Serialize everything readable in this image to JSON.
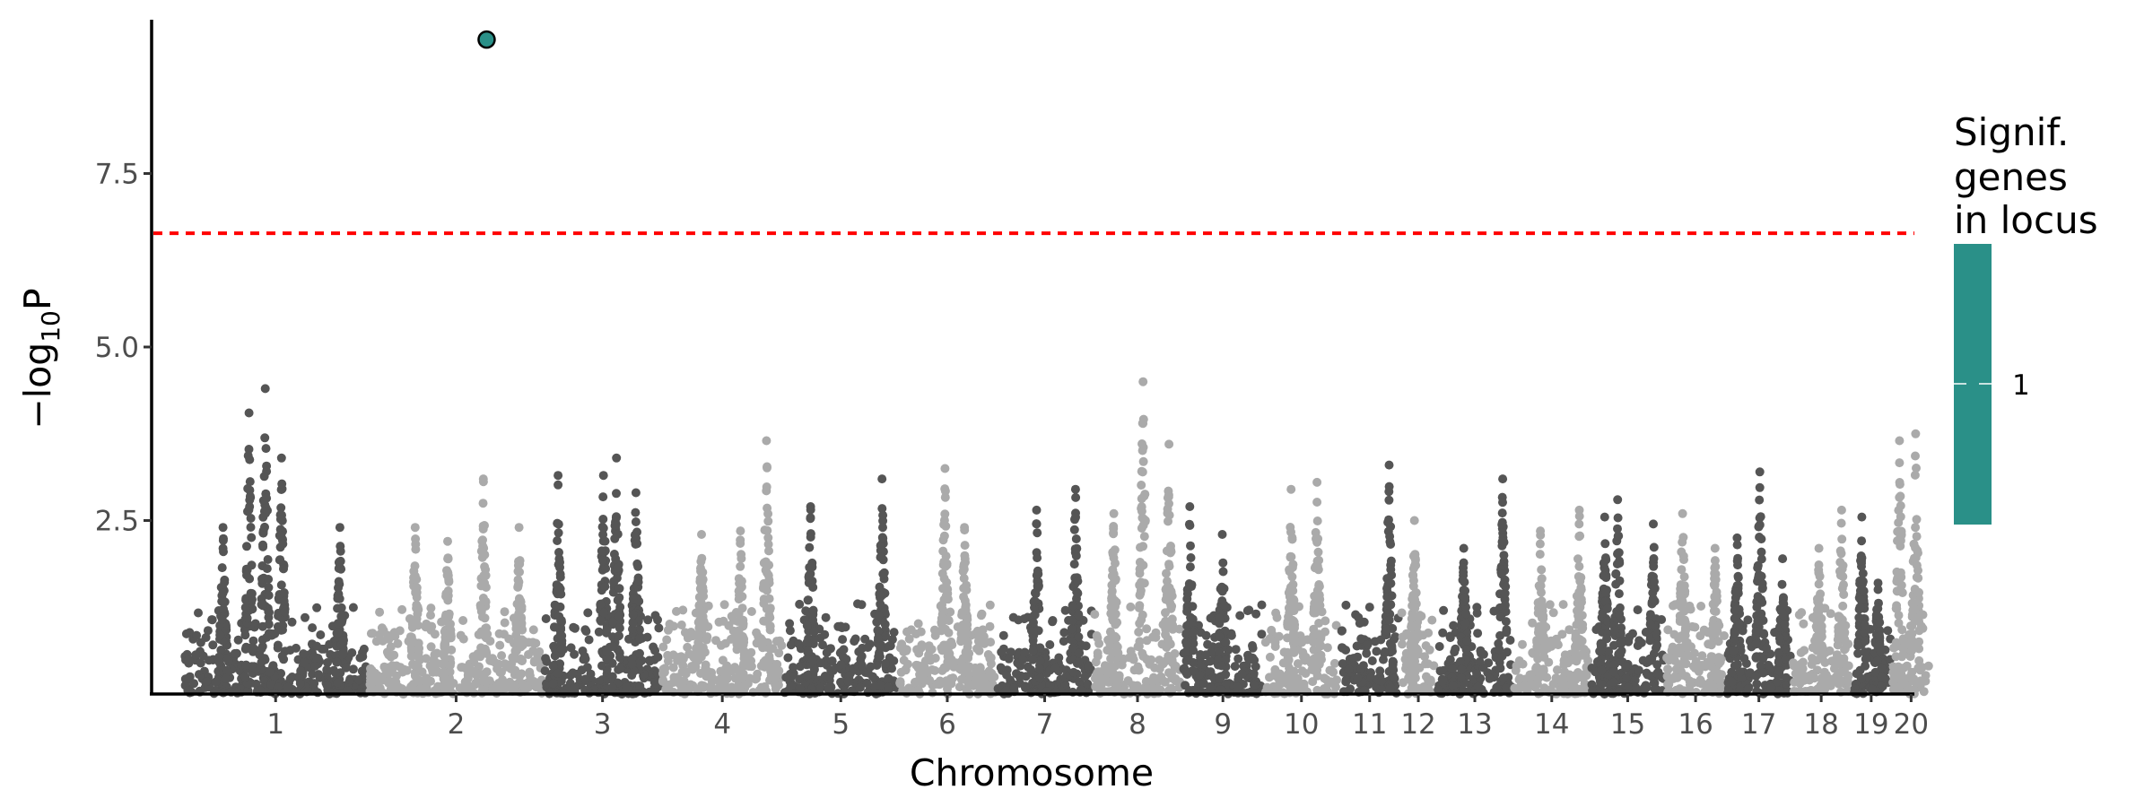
{
  "chart_data": {
    "type": "scatter",
    "subtype": "manhattan",
    "xlabel": "Chromosome",
    "ylabel_prefix": "−log",
    "ylabel_sub": "10",
    "ylabel_suffix": "P",
    "xlim_mb": [
      -50,
      2665
    ],
    "ylim": [
      0,
      9.7
    ],
    "yticks": [
      2.5,
      5.0,
      7.5
    ],
    "ytick_labels": [
      "2.5",
      "5.0",
      "7.5"
    ],
    "threshold": 6.64,
    "threshold_color": "#FF0000",
    "colors": {
      "dark": "#555555",
      "light": "#AAAAAA",
      "significant": "#2A9088"
    },
    "chromosomes": [
      {
        "label": "1",
        "length_mb": 282,
        "shade": "dark",
        "peaks": [
          [
            60,
            2.4
          ],
          [
            100,
            4.05
          ],
          [
            125,
            4.4
          ],
          [
            150,
            3.4
          ],
          [
            240,
            2.4
          ]
        ]
      },
      {
        "label": "2",
        "length_mb": 266,
        "shade": "light",
        "peaks": [
          [
            70,
            2.4
          ],
          [
            120,
            2.2
          ],
          [
            175,
            3.1
          ],
          [
            230,
            2.4
          ]
        ]
      },
      {
        "label": "3",
        "length_mb": 177,
        "shade": "dark",
        "peaks": [
          [
            20,
            3.15
          ],
          [
            90,
            3.15
          ],
          [
            110,
            3.4
          ],
          [
            140,
            2.9
          ]
        ]
      },
      {
        "label": "4",
        "length_mb": 184,
        "shade": "light",
        "peaks": [
          [
            60,
            2.3
          ],
          [
            120,
            2.35
          ],
          [
            160,
            3.65
          ]
        ]
      },
      {
        "label": "5",
        "length_mb": 173,
        "shade": "dark",
        "peaks": [
          [
            40,
            2.7
          ],
          [
            150,
            3.1
          ]
        ]
      },
      {
        "label": "6",
        "length_mb": 147,
        "shade": "light",
        "peaks": [
          [
            70,
            3.25
          ],
          [
            100,
            2.4
          ]
        ]
      },
      {
        "label": "7",
        "length_mb": 145,
        "shade": "dark",
        "peaks": [
          [
            60,
            2.65
          ],
          [
            120,
            2.95
          ]
        ]
      },
      {
        "label": "8",
        "length_mb": 133,
        "shade": "light",
        "peaks": [
          [
            30,
            2.6
          ],
          [
            75,
            4.5
          ],
          [
            115,
            3.6
          ]
        ]
      },
      {
        "label": "9",
        "length_mb": 122,
        "shade": "dark",
        "peaks": [
          [
            10,
            2.7
          ],
          [
            60,
            2.3
          ]
        ]
      },
      {
        "label": "10",
        "length_mb": 112,
        "shade": "light",
        "peaks": [
          [
            40,
            2.95
          ],
          [
            80,
            3.05
          ]
        ]
      },
      {
        "label": "11",
        "length_mb": 90,
        "shade": "dark",
        "peaks": [
          [
            75,
            3.3
          ]
        ]
      },
      {
        "label": "12",
        "length_mb": 52,
        "shade": "light",
        "peaks": [
          [
            20,
            2.5
          ]
        ]
      },
      {
        "label": "13",
        "length_mb": 114,
        "shade": "dark",
        "peaks": [
          [
            40,
            2.1
          ],
          [
            100,
            3.1
          ]
        ]
      },
      {
        "label": "14",
        "length_mb": 115,
        "shade": "light",
        "peaks": [
          [
            40,
            2.35
          ],
          [
            100,
            2.65
          ]
        ]
      },
      {
        "label": "15",
        "length_mb": 111,
        "shade": "dark",
        "peaks": [
          [
            20,
            2.55
          ],
          [
            40,
            2.8
          ],
          [
            95,
            2.45
          ]
        ]
      },
      {
        "label": "16",
        "length_mb": 90,
        "shade": "light",
        "peaks": [
          [
            25,
            2.6
          ],
          [
            75,
            2.1
          ]
        ]
      },
      {
        "label": "17",
        "length_mb": 97,
        "shade": "dark",
        "peaks": [
          [
            15,
            2.25
          ],
          [
            50,
            3.2
          ],
          [
            85,
            1.95
          ]
        ]
      },
      {
        "label": "18",
        "length_mb": 87,
        "shade": "light",
        "peaks": [
          [
            40,
            2.1
          ],
          [
            75,
            2.65
          ]
        ]
      },
      {
        "label": "19",
        "length_mb": 59,
        "shade": "dark",
        "peaks": [
          [
            15,
            2.55
          ],
          [
            40,
            1.6
          ]
        ]
      },
      {
        "label": "20",
        "length_mb": 56,
        "shade": "light",
        "peaks": [
          [
            10,
            3.65
          ],
          [
            35,
            3.75
          ]
        ]
      }
    ],
    "significant_points": [
      {
        "chromosome": "2",
        "position_mb": 180,
        "value": 9.43,
        "genes_in_locus": 1
      }
    ],
    "legend": {
      "title_lines": [
        "Signif.",
        "genes",
        "in locus"
      ],
      "placement": "right",
      "colorbar_color": "#2A9088",
      "labels": [
        "1"
      ]
    }
  }
}
